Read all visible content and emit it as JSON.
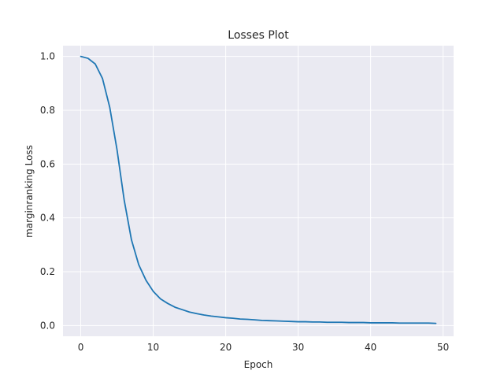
{
  "chart_data": {
    "type": "line",
    "title": "Losses Plot",
    "xlabel": "Epoch",
    "ylabel": "marginranking Loss",
    "xlim": [
      -2.45,
      51.45
    ],
    "ylim": [
      -0.04,
      1.04
    ],
    "xticks": [
      "0",
      "10",
      "20",
      "30",
      "40",
      "50"
    ],
    "yticks": [
      "0.0",
      "0.2",
      "0.4",
      "0.6",
      "0.8",
      "1.0"
    ],
    "grid": true,
    "background_color": "#eaeaf2",
    "line_color": "#1f77b4",
    "series": [
      {
        "name": "",
        "x": [
          0,
          1,
          2,
          3,
          4,
          5,
          6,
          7,
          8,
          9,
          10,
          11,
          12,
          13,
          14,
          15,
          16,
          17,
          18,
          19,
          20,
          21,
          22,
          23,
          24,
          25,
          26,
          27,
          28,
          29,
          30,
          31,
          32,
          33,
          34,
          35,
          36,
          37,
          38,
          39,
          40,
          41,
          42,
          43,
          44,
          45,
          46,
          47,
          48,
          49
        ],
        "values": [
          1.0,
          0.993,
          0.972,
          0.918,
          0.811,
          0.654,
          0.465,
          0.318,
          0.226,
          0.168,
          0.127,
          0.099,
          0.082,
          0.068,
          0.059,
          0.05,
          0.044,
          0.039,
          0.035,
          0.032,
          0.029,
          0.027,
          0.024,
          0.023,
          0.021,
          0.019,
          0.018,
          0.017,
          0.016,
          0.015,
          0.014,
          0.014,
          0.013,
          0.013,
          0.012,
          0.012,
          0.012,
          0.011,
          0.011,
          0.011,
          0.01,
          0.01,
          0.01,
          0.01,
          0.009,
          0.009,
          0.009,
          0.009,
          0.009,
          0.008
        ]
      }
    ]
  }
}
